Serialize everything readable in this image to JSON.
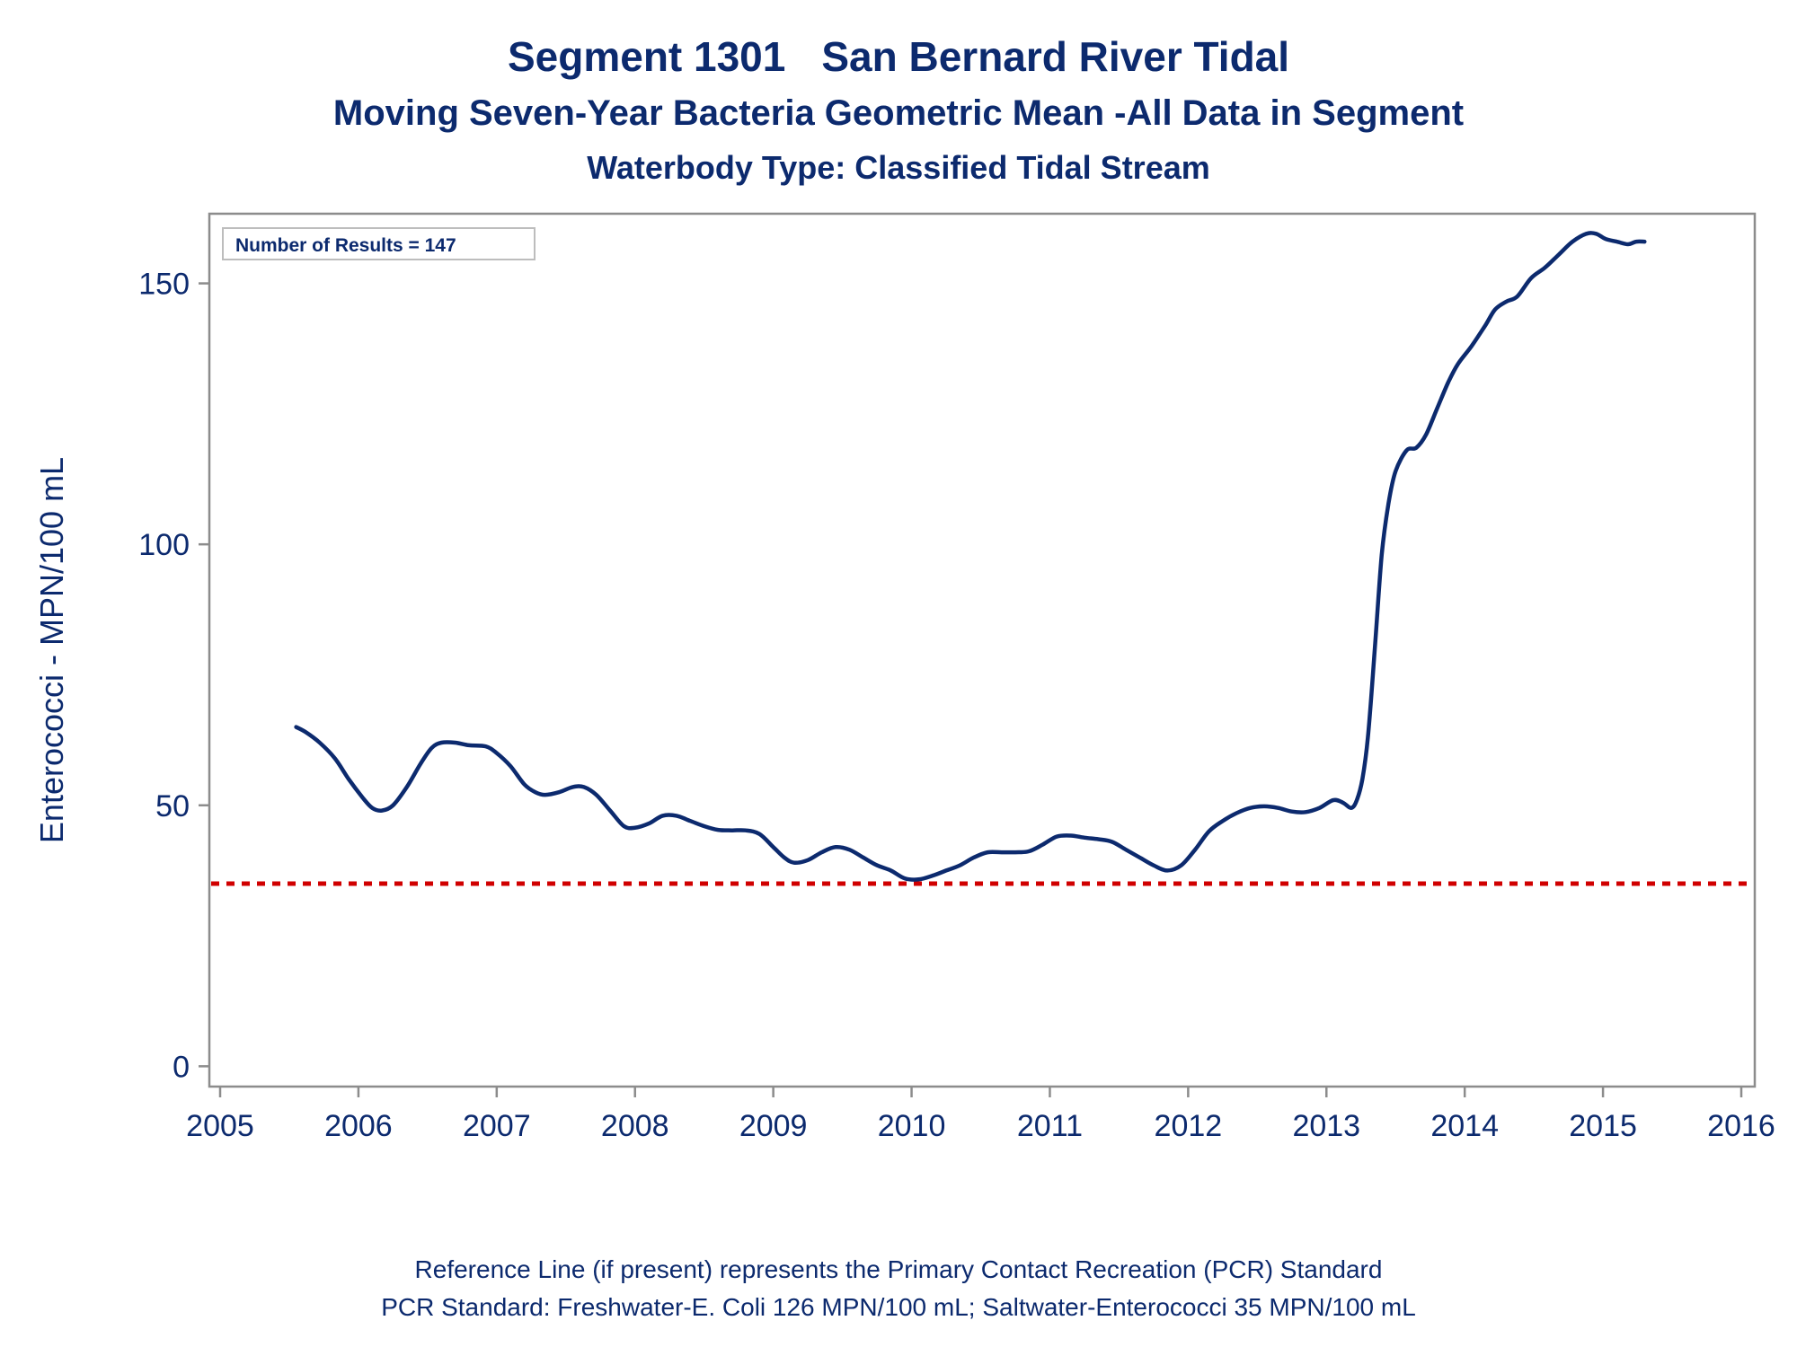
{
  "titles": {
    "line1_a": "Segment 1301",
    "line1_b": "San Bernard River Tidal",
    "line2": "Moving Seven-Year Bacteria Geometric Mean -All Data in Segment",
    "line3": "Waterbody Type: Classified Tidal Stream"
  },
  "inset_label": "Number of Results = 147",
  "footnotes": [
    "Reference Line (if present) represents the Primary Contact Recreation (PCR) Standard",
    "PCR Standard: Freshwater-E. Coli 126 MPN/100 mL; Saltwater-Enterococci 35 MPN/100 mL"
  ],
  "chart_data": {
    "type": "line",
    "xlabel": "",
    "ylabel": "Enterococci - MPN/100 mL",
    "xlim": [
      2005,
      2016
    ],
    "ylim": [
      -2,
      163
    ],
    "xticks": [
      2005,
      2006,
      2007,
      2008,
      2009,
      2010,
      2011,
      2012,
      2013,
      2014,
      2015,
      2016
    ],
    "yticks": [
      0,
      50,
      100,
      150
    ],
    "reference_line": {
      "y": 35,
      "color": "#d00000",
      "style": "dotted"
    },
    "line_color": "#0c2a6e",
    "series": [
      {
        "x": [
          2005.55,
          2005.62,
          2005.72,
          2005.83,
          2005.93,
          2006.03,
          2006.1,
          2006.17,
          2006.25,
          2006.35,
          2006.45,
          2006.53,
          2006.6,
          2006.7,
          2006.8,
          2006.92,
          2007.0,
          2007.1,
          2007.2,
          2007.28,
          2007.35,
          2007.45,
          2007.55,
          2007.63,
          2007.72,
          2007.82,
          2007.92,
          2008.0,
          2008.1,
          2008.2,
          2008.3,
          2008.4,
          2008.5,
          2008.6,
          2008.7,
          2008.8,
          2008.9,
          2009.0,
          2009.08,
          2009.15,
          2009.25,
          2009.35,
          2009.45,
          2009.55,
          2009.65,
          2009.75,
          2009.85,
          2009.95,
          2010.05,
          2010.15,
          2010.25,
          2010.35,
          2010.45,
          2010.55,
          2010.65,
          2010.75,
          2010.85,
          2010.95,
          2011.05,
          2011.15,
          2011.25,
          2011.35,
          2011.45,
          2011.55,
          2011.65,
          2011.75,
          2011.85,
          2011.95,
          2012.05,
          2012.15,
          2012.25,
          2012.35,
          2012.45,
          2012.55,
          2012.65,
          2012.75,
          2012.85,
          2012.95,
          2013.05,
          2013.12,
          2013.18,
          2013.22,
          2013.26,
          2013.3,
          2013.35,
          2013.4,
          2013.45,
          2013.5,
          2013.58,
          2013.65,
          2013.72,
          2013.8,
          2013.88,
          2013.95,
          2014.05,
          2014.15,
          2014.22,
          2014.3,
          2014.38,
          2014.48,
          2014.58,
          2014.68,
          2014.78,
          2014.88,
          2014.95,
          2015.02,
          2015.1,
          2015.18,
          2015.24,
          2015.3
        ],
        "values": [
          65,
          64,
          62,
          59,
          55,
          51.5,
          49.5,
          49,
          50,
          53.5,
          58,
          61,
          62,
          62,
          61.5,
          61.3,
          60,
          57.5,
          54,
          52.5,
          52,
          52.5,
          53.5,
          53.5,
          52,
          49,
          46,
          45.7,
          46.5,
          48,
          48,
          47,
          46,
          45.3,
          45.2,
          45.2,
          44.5,
          42,
          40,
          39,
          39.5,
          41,
          42,
          41.5,
          40,
          38.5,
          37.5,
          36,
          35.8,
          36.5,
          37.5,
          38.5,
          40,
          41,
          41,
          41,
          41.2,
          42.5,
          44,
          44.2,
          43.8,
          43.5,
          43,
          41.5,
          40,
          38.5,
          37.5,
          38.5,
          41.5,
          45,
          47,
          48.5,
          49.5,
          49.8,
          49.5,
          48.8,
          48.7,
          49.5,
          51,
          50.5,
          49.5,
          51,
          55,
          63,
          80,
          98,
          108,
          114,
          118,
          118.5,
          121,
          126,
          131,
          134.5,
          138,
          142,
          145,
          146.5,
          147.5,
          151,
          153,
          155.5,
          158,
          159.5,
          159.5,
          158.5,
          158,
          157.5,
          158,
          158
        ]
      }
    ]
  }
}
